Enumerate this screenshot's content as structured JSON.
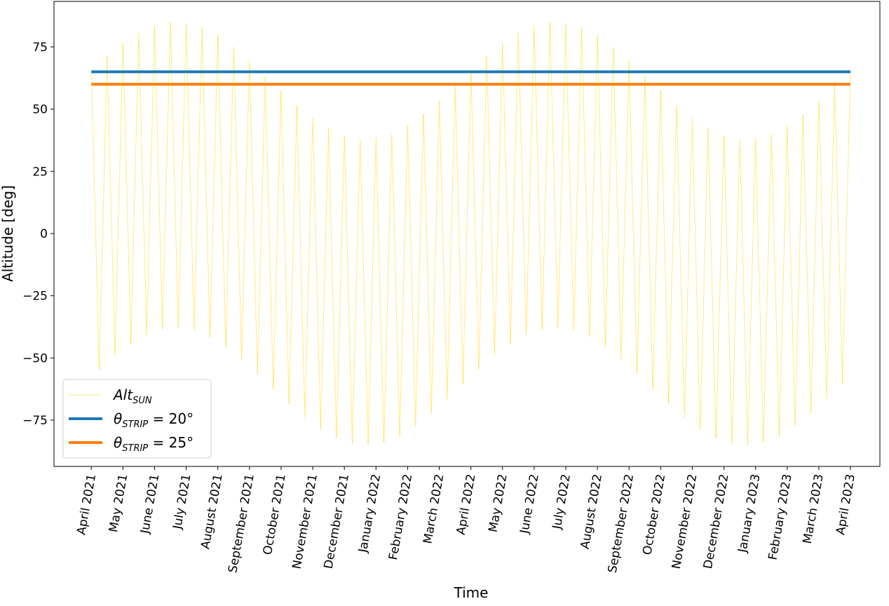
{
  "chart_data": {
    "type": "line",
    "xlabel": "Time",
    "ylabel": "Altitude [deg]",
    "xlim": [
      -1.18,
      24.93
    ],
    "ylim": [
      -93.6,
      93.3
    ],
    "yticks": [
      {
        "value": -75,
        "label": "−75"
      },
      {
        "value": -50,
        "label": "−50"
      },
      {
        "value": -25,
        "label": "−25"
      },
      0,
      25,
      50,
      75
    ],
    "xticks": [
      {
        "value": 0,
        "label": "April 2021"
      },
      {
        "value": 1,
        "label": "May 2021"
      },
      {
        "value": 2,
        "label": "June 2021"
      },
      {
        "value": 3,
        "label": "July 2021"
      },
      {
        "value": 4,
        "label": "August 2021"
      },
      {
        "value": 5,
        "label": "September 2021"
      },
      {
        "value": 6,
        "label": "October 2021"
      },
      {
        "value": 7,
        "label": "November 2021"
      },
      {
        "value": 8,
        "label": "December 2021"
      },
      {
        "value": 9,
        "label": "January 2022"
      },
      {
        "value": 10,
        "label": "February 2022"
      },
      {
        "value": 11,
        "label": "March 2022"
      },
      {
        "value": 12,
        "label": "April 2022"
      },
      {
        "value": 13,
        "label": "May 2022"
      },
      {
        "value": 14,
        "label": "June 2022"
      },
      {
        "value": 15,
        "label": "July 2022"
      },
      {
        "value": 16,
        "label": "August 2022"
      },
      {
        "value": 17,
        "label": "September 2022"
      },
      {
        "value": 18,
        "label": "October 2022"
      },
      {
        "value": 19,
        "label": "November 2022"
      },
      {
        "value": 20,
        "label": "December 2022"
      },
      {
        "value": 21,
        "label": "January 2023"
      },
      {
        "value": 22,
        "label": "February 2023"
      },
      {
        "value": 23,
        "label": "March 2023"
      },
      {
        "value": 24,
        "label": "April 2023"
      }
    ],
    "legend": "lower left",
    "series": [
      {
        "name": "Alt_SUN",
        "color": "#ffd700",
        "linestyle": "dotted",
        "x": [
          0,
          0.25,
          0.5,
          0.75,
          1,
          1.25,
          1.5,
          1.75,
          2,
          2.25,
          2.5,
          2.75,
          3,
          3.25,
          3.5,
          3.75,
          4,
          4.25,
          4.5,
          4.75,
          5,
          5.25,
          5.5,
          5.75,
          6,
          6.25,
          6.5,
          6.75,
          7,
          7.25,
          7.5,
          7.75,
          8,
          8.25,
          8.5,
          8.75,
          9,
          9.25,
          9.5,
          9.75,
          10,
          10.25,
          10.5,
          10.75,
          11,
          11.25,
          11.5,
          11.75,
          12,
          12.25,
          12.5,
          12.75,
          13,
          13.25,
          13.5,
          13.75,
          14,
          14.25,
          14.5,
          14.75,
          15,
          15.25,
          15.5,
          15.75,
          16,
          16.25,
          16.5,
          16.75,
          17,
          17.25,
          17.5,
          17.75,
          18,
          18.25,
          18.5,
          18.75,
          19,
          19.25,
          19.5,
          19.75,
          20,
          20.25,
          20.5,
          20.75,
          21,
          21.25,
          21.5,
          21.75,
          22,
          22.25,
          22.5,
          22.75,
          23,
          23.25,
          23.5,
          23.75,
          24
        ],
        "values": [
          65.5,
          -54.5,
          71.4,
          -48.9,
          76.6,
          -44.2,
          80.7,
          -40.7,
          83.6,
          -38.6,
          84.9,
          -38.0,
          84.6,
          -39.1,
          82.8,
          -41.7,
          79.5,
          -45.6,
          75.0,
          -50.6,
          69.6,
          -56.4,
          63.6,
          -62.5,
          57.5,
          -68.5,
          51.6,
          -74.1,
          46.4,
          -78.8,
          42.3,
          -82.3,
          39.4,
          -84.4,
          38.1,
          -85.0,
          38.4,
          -83.9,
          40.2,
          -81.3,
          43.5,
          -77.4,
          48.0,
          -72.4,
          53.4,
          -66.6,
          59.4,
          -60.5,
          65.5,
          -54.5,
          71.4,
          -48.9,
          76.6,
          -44.2,
          80.7,
          -40.7,
          83.6,
          -38.6,
          84.9,
          -38.0,
          84.6,
          -39.1,
          82.8,
          -41.7,
          79.5,
          -45.6,
          75.0,
          -50.6,
          69.6,
          -56.4,
          63.6,
          -62.5,
          57.5,
          -68.5,
          51.6,
          -74.1,
          46.4,
          -78.8,
          42.3,
          -82.3,
          39.4,
          -84.4,
          38.1,
          -85.0,
          38.4,
          -83.9,
          40.2,
          -81.3,
          43.5,
          -77.4,
          48.0,
          -72.4,
          53.4,
          -66.6,
          59.4,
          -60.5,
          65.5
        ]
      },
      {
        "name": "θ_STRIP = 20°",
        "color": "#1f77b4",
        "linestyle": "solid",
        "x": [
          0,
          24
        ],
        "values": [
          65,
          65
        ]
      },
      {
        "name": "θ_STRIP = 25°",
        "color": "#ff7f0e",
        "linestyle": "solid",
        "x": [
          0,
          24
        ],
        "values": [
          60,
          60
        ]
      }
    ]
  }
}
